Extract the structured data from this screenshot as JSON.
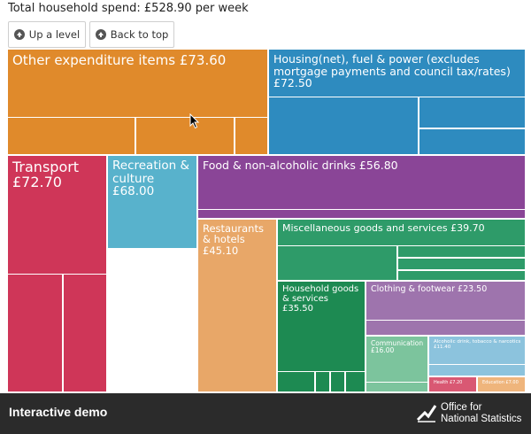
{
  "header": {
    "total_label": "Total household spend: £528.90 per week"
  },
  "toolbar": {
    "up_label": "Up a level",
    "back_label": "Back to top"
  },
  "treemap": {
    "categories": [
      {
        "name": "Other expenditure items",
        "value": 73.6,
        "value_label": "£73.60",
        "color": "#e08a2b"
      },
      {
        "name": "Housing(net), fuel & power (excludes mortgage payments and council tax/rates)",
        "value": 72.5,
        "value_label": "£72.50",
        "color": "#2e8bbf"
      },
      {
        "name": "Transport",
        "value": 72.7,
        "value_label": "£72.70",
        "color": "#cf3658"
      },
      {
        "name": "Recreation & culture",
        "value": 68.0,
        "value_label": "£68.00",
        "color": "#58b2cc"
      },
      {
        "name": "Food & non-alcoholic drinks",
        "value": 56.8,
        "value_label": "£56.80",
        "color": "#8a4597"
      },
      {
        "name": "Restaurants & hotels",
        "value": 45.1,
        "value_label": "£45.10",
        "color": "#e8a768"
      },
      {
        "name": "Miscellaneous goods and services",
        "value": 39.7,
        "value_label": "£39.70",
        "color": "#2e9b69"
      },
      {
        "name": "Household goods & services",
        "value": 35.5,
        "value_label": "£35.50",
        "color": "#1d8a52"
      },
      {
        "name": "Clothing & footwear",
        "value": 23.5,
        "value_label": "£23.50",
        "color": "#9e74ad"
      },
      {
        "name": "Communication",
        "value": 16.0,
        "value_label": "£16.00",
        "color": "#7cc49d"
      },
      {
        "name": "Alcoholic drink, tobacco & narcotics",
        "value": 11.4,
        "value_label": "£11.40",
        "color": "#8cc3dd"
      },
      {
        "name": "Health",
        "value": 7.2,
        "value_label": "£7.20",
        "color": "#d95873"
      },
      {
        "name": "Education",
        "value": 7.0,
        "value_label": "£7.00",
        "color": "#efb57c"
      }
    ]
  },
  "footer": {
    "title": "Interactive demo",
    "brand_line1": "Office for",
    "brand_line2": "National Statistics"
  }
}
